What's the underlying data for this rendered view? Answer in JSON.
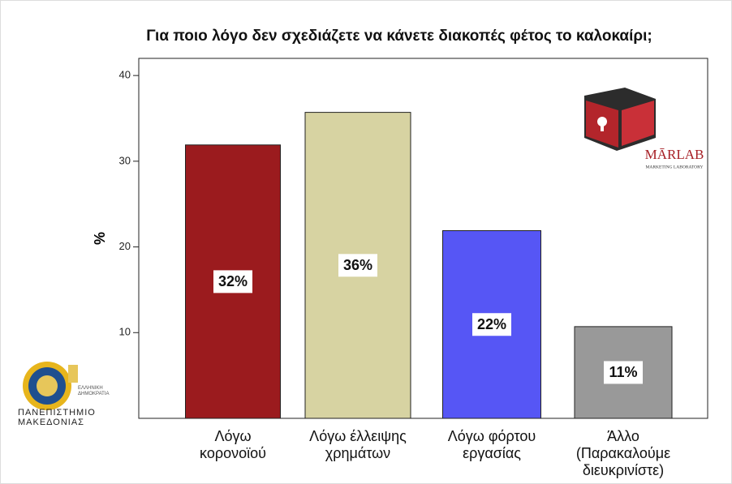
{
  "chart_data": {
    "type": "bar",
    "title": "Για ποιο λόγο δεν σχεδιάζετε να κάνετε διακοπές φέτος το καλοκαίρι;",
    "y_label": "%",
    "categories": [
      "Λόγω\nκορονοϊού",
      "Λόγω έλλειψης\nχρημάτων",
      "Λόγω φόρτου\nεργασίας",
      "Άλλο\n(Παρακαλούμε\nδιευκρινίστε)"
    ],
    "values": [
      31.9,
      35.7,
      21.9,
      10.7
    ],
    "value_labels": [
      "32%",
      "36%",
      "22%",
      "11%"
    ],
    "colors": [
      "#9b1b1e",
      "#d7d3a2",
      "#5656f5",
      "#999999"
    ],
    "ylim": [
      0,
      42
    ],
    "yticks": [
      10,
      20,
      30,
      40
    ],
    "grid": false
  },
  "logos": {
    "marlab": "MĀRLAB",
    "marlab_sub": "MARKETING LABORATORY",
    "university": "ΠΑΝΕΠΙΣΤΗΜΙΟ\nΜΑΚΕΔΟΝΙΑΣ",
    "republic": "ΕΛΛΗΝΙΚΗ\nΔΗΜΟΚΡΑΤΙΑ"
  }
}
